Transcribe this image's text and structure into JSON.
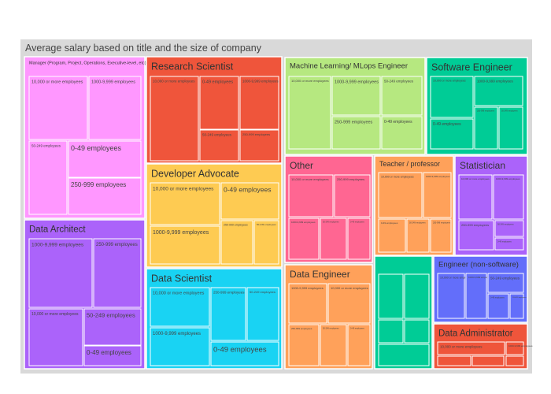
{
  "chart_data": {
    "type": "treemap",
    "title": "Average salary based on title and the size of company",
    "groups": [
      {
        "name": "Manager (Program, Project, Operations, Executive-level, etc)",
        "color": "#FF97FF",
        "children": [
          "10,000 or more employees",
          "1000-9,999 employees",
          "50-249 employees",
          "0-49 employees",
          "250-999 employees"
        ]
      },
      {
        "name": "Data Architect",
        "color": "#AB63FA",
        "children": [
          "1000-9,999 employees",
          "250-999 employees",
          "10,000 or more employees",
          "50-249 employees",
          "0-49 employees"
        ]
      },
      {
        "name": "Research Scientist",
        "color": "#EF553B",
        "children": [
          "10,000 or more employees",
          "0-49 employees",
          "1000-9,999 employees",
          "50-249 employees",
          "250-999 employees"
        ]
      },
      {
        "name": "Developer Advocate",
        "color": "#FECB52",
        "children": [
          "10,000 or more employees",
          "0-49 employees",
          "1000-9,999 employees",
          "250-999 employees",
          "50-249 employees"
        ]
      },
      {
        "name": "Data Scientist",
        "color": "#19D3F3",
        "children": [
          "10,000 or more employees",
          "250-999 employees",
          "50-249 employees",
          "1000-9,999 employees",
          "0-49 employees"
        ]
      },
      {
        "name": "Machine Learning/ MLops Engineer",
        "color": "#B6E880",
        "children": [
          "10,000 or more employees",
          "1000-9,999 employees",
          "50-249 employees",
          "250-999 employees",
          "0-49 employees"
        ]
      },
      {
        "name": "Software Engineer",
        "color": "#00CC96",
        "children": [
          "10,000 or more employees",
          "1000-9,999 employees",
          "0-49 employees",
          "250-999 employees",
          "50-249 employees"
        ]
      },
      {
        "name": "Other",
        "color": "#FF6692",
        "children": [
          "10,000 or more employees",
          "250-999 employees",
          "1000-9,999 employees",
          "50-249 employees",
          "0-49 employees"
        ]
      },
      {
        "name": "Teacher / professor",
        "color": "#FFA15A",
        "children": [
          "10,000 or more employees",
          "1000-9,999 employees",
          "0-49 employees",
          "50-249 employees",
          "250-999 employees"
        ]
      },
      {
        "name": "Statistician",
        "color": "#AB63FA",
        "children": [
          "10,000 or more employees",
          "1000-9,999 employees",
          "250-999 employees",
          "50-249 employees",
          "0-49 employees"
        ]
      },
      {
        "name": "Data Engineer",
        "color": "#FFA15A",
        "children": [
          "1000-9,999 employees",
          "10,000 or more employees",
          "250-999 employees",
          "50-249 employees",
          "0-49 employees"
        ]
      },
      {
        "name": "",
        "color": "#00CC96",
        "children": [
          "",
          "",
          "",
          "",
          ""
        ]
      },
      {
        "name": "Engineer (non-software)",
        "color": "#636EFA",
        "children": [
          "10,000 or more employees",
          "1000-9,999 employees",
          "50-249 employees",
          "0-49 employees",
          "250-999 employees"
        ]
      },
      {
        "name": "Data Administrator",
        "color": "#EF553B",
        "children": [
          "10,000 or more employees",
          "1000-9,999 employees",
          "",
          "",
          ""
        ]
      }
    ]
  }
}
